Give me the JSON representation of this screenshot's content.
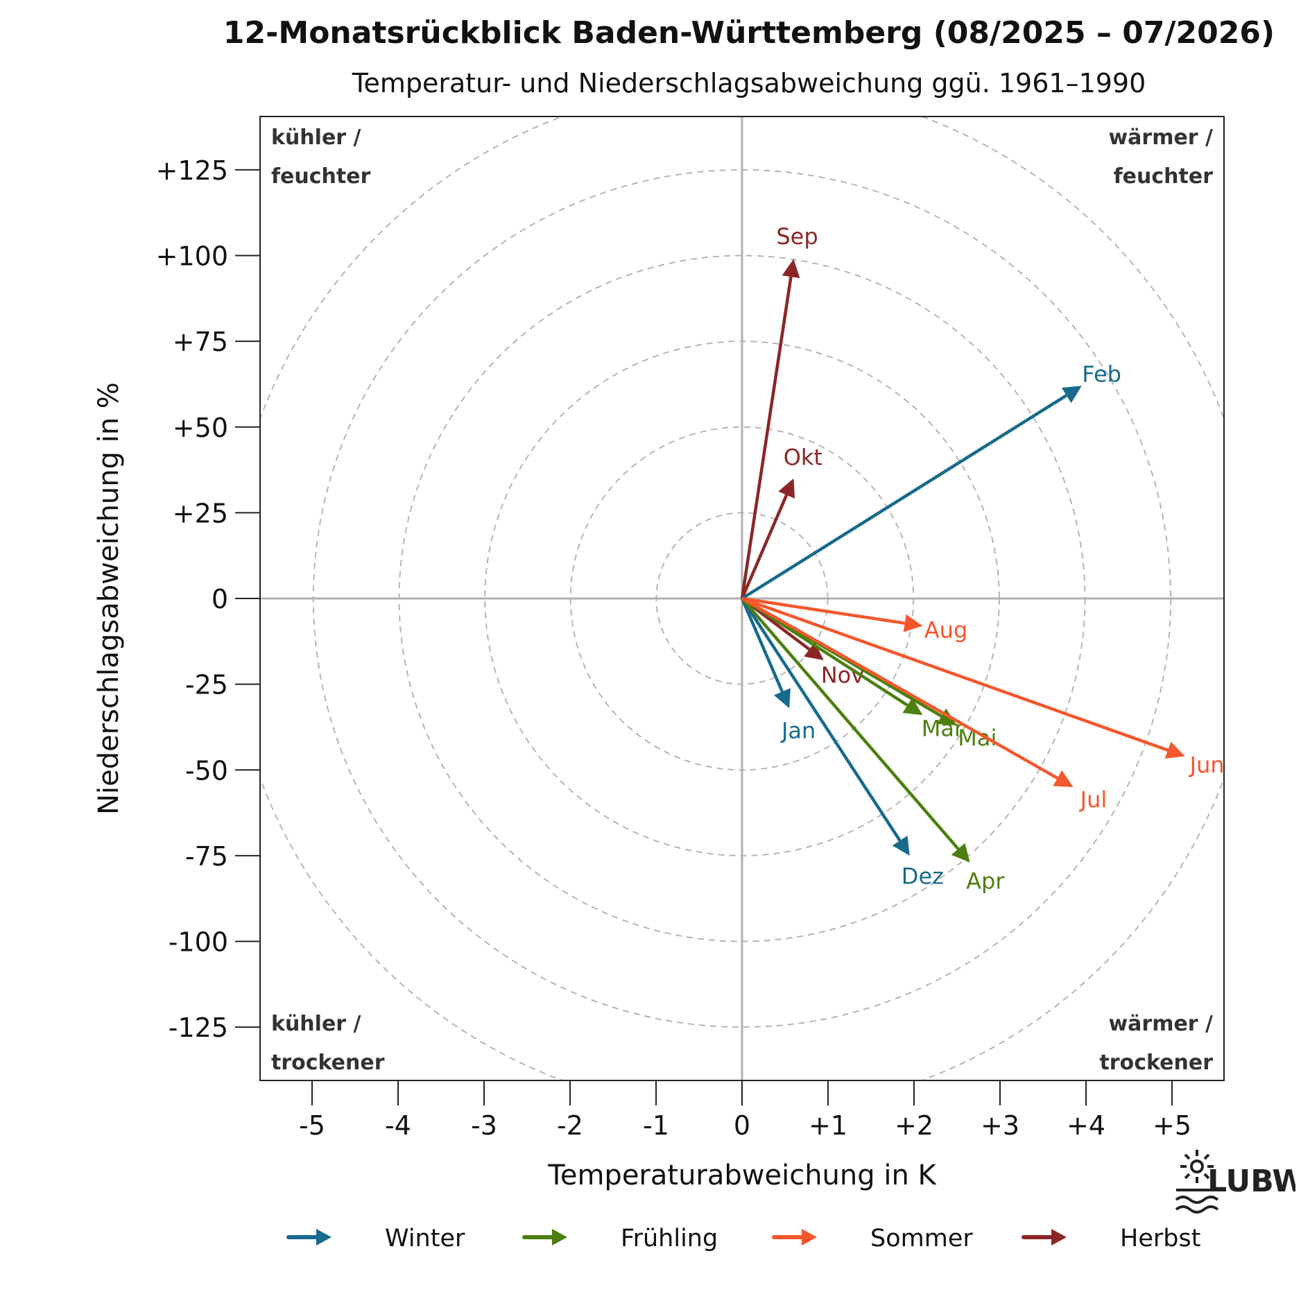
{
  "title": "12-Monatsrückblick Baden-Württemberg (08/2025 – 07/2026)",
  "subtitle": "Temperatur- und Niederschlagsabweichung ggü. 1961–1990",
  "colors": {
    "winter": "#176a8c",
    "fruehling": "#4d7f0f",
    "sommer": "#f4572c",
    "herbst": "#8b2626",
    "axis": "#222222",
    "zero_lines": "#b0b0b0",
    "circles": "#b5b5b5"
  },
  "quadrants": {
    "top_left": [
      "kühler /",
      "feuchter"
    ],
    "top_right": [
      "wärmer /",
      "feuchter"
    ],
    "bottom_left": [
      "kühler /",
      "trockener"
    ],
    "bottom_right": [
      "wärmer /",
      "trockener"
    ]
  },
  "legend": [
    {
      "label": "Winter",
      "season": "winter"
    },
    {
      "label": "Frühling",
      "season": "fruehling"
    },
    {
      "label": "Sommer",
      "season": "sommer"
    },
    {
      "label": "Herbst",
      "season": "herbst"
    }
  ],
  "logo": {
    "text": "LUBW",
    "icon": "sun-water-logo-icon"
  },
  "chart_data": {
    "type": "scatter",
    "style": "vectors-from-origin",
    "xlabel": "Temperaturabweichung in K",
    "ylabel": "Niederschlagsabweichung in %",
    "xlim": [
      -5.6,
      5.6
    ],
    "ylim": [
      -140,
      140
    ],
    "xticks": [
      -5,
      -4,
      -3,
      -2,
      -1,
      0,
      1,
      2,
      3,
      4,
      5
    ],
    "xtick_labels": [
      "-5",
      "-4",
      "-3",
      "-2",
      "-1",
      "0",
      "+1",
      "+2",
      "+3",
      "+4",
      "+5"
    ],
    "yticks": [
      125,
      100,
      75,
      50,
      25,
      0,
      -25,
      -50,
      -75,
      -100,
      -125
    ],
    "ytick_labels": [
      "+125",
      "+100",
      "+75",
      "+50",
      "+25",
      "0",
      "-25",
      "-50",
      "-75",
      "-100",
      "-125"
    ],
    "grid": "concentric dashed circles",
    "grid_radii_y_units": [
      25,
      50,
      75,
      100,
      125,
      150
    ],
    "legend_position": "bottom",
    "points": [
      {
        "label": "Aug",
        "season": "sommer",
        "x": 2.1,
        "y": -8
      },
      {
        "label": "Sep",
        "season": "herbst",
        "x": 0.6,
        "y": 99
      },
      {
        "label": "Okt",
        "season": "herbst",
        "x": 0.6,
        "y": 35
      },
      {
        "label": "Nov",
        "season": "herbst",
        "x": 0.95,
        "y": -18
      },
      {
        "label": "Dez",
        "season": "winter",
        "x": 1.95,
        "y": -75
      },
      {
        "label": "Jan",
        "season": "winter",
        "x": 0.55,
        "y": -32
      },
      {
        "label": "Feb",
        "season": "winter",
        "x": 3.95,
        "y": 62
      },
      {
        "label": "Mär",
        "season": "fruehling",
        "x": 2.1,
        "y": -34
      },
      {
        "label": "Apr",
        "season": "fruehling",
        "x": 2.65,
        "y": -77
      },
      {
        "label": "Mai",
        "season": "fruehling",
        "x": 2.5,
        "y": -37
      },
      {
        "label": "Jun",
        "season": "sommer",
        "x": 5.15,
        "y": -46
      },
      {
        "label": "Jul",
        "season": "sommer",
        "x": 3.85,
        "y": -55
      }
    ]
  }
}
